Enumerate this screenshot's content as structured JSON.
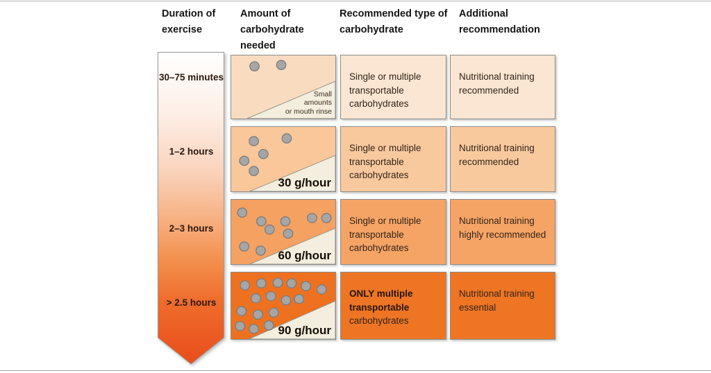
{
  "headers": [
    {
      "label": "Duration of exercise"
    },
    {
      "label": "Amount of carbohydrate needed"
    },
    {
      "label": "Recommended type of carbohydrate"
    },
    {
      "label": "Additional recommendation"
    }
  ],
  "duration_arrow": {
    "labels": [
      "30–75 minutes",
      "1–2 hours",
      "2–3 hours",
      "> 2.5 hours"
    ],
    "gradient": [
      "#ffffff",
      "#fdeee5",
      "#fad3bc",
      "#f7b488",
      "#f3924f",
      "#ef6c2c",
      "#e84d1a"
    ]
  },
  "rows": [
    {
      "color_amount": "#f9dcc0",
      "color_cells": "#fae6d2",
      "amount": {
        "dots": [
          [
            34,
            16
          ],
          [
            73,
            14
          ]
        ],
        "note_lines": [
          "Small",
          "amounts",
          "or mouth rinse"
        ]
      },
      "type": {
        "emphasis": "",
        "text": "Single or multiple transportable carbohydrates"
      },
      "additional": "Nutritional training recommended"
    },
    {
      "color_amount": "#f9c79a",
      "color_cells": "#f9c99e",
      "amount": {
        "dots": [
          [
            33,
            21
          ],
          [
            47,
            40
          ],
          [
            81,
            17
          ],
          [
            19,
            50
          ],
          [
            33,
            65
          ]
        ],
        "label": "30 g/hour"
      },
      "type": {
        "emphasis": "",
        "text": "Single or multiple transportable carbohydrates"
      },
      "additional": "Nutritional training recommended"
    },
    {
      "color_amount": "#f5a161",
      "color_cells": "#f5a465",
      "amount": {
        "dots": [
          [
            16,
            19
          ],
          [
            44,
            32
          ],
          [
            56,
            44
          ],
          [
            79,
            32
          ],
          [
            83,
            50
          ],
          [
            118,
            27
          ],
          [
            139,
            27
          ],
          [
            19,
            69
          ],
          [
            43,
            75
          ]
        ],
        "label": "60 g/hour"
      },
      "type": {
        "emphasis": "",
        "text": "Single or multiple transportable carbohydrates"
      },
      "additional": "Nutritional training highly recommended"
    },
    {
      "color_amount": "#ee7120",
      "color_cells": "#ee7524",
      "amount": {
        "dots": [
          [
            20,
            19
          ],
          [
            44,
            16
          ],
          [
            68,
            15
          ],
          [
            88,
            16
          ],
          [
            109,
            20
          ],
          [
            132,
            25
          ],
          [
            36,
            38
          ],
          [
            58,
            35
          ],
          [
            80,
            41
          ],
          [
            99,
            39
          ],
          [
            15,
            57
          ],
          [
            39,
            62
          ],
          [
            62,
            59
          ],
          [
            13,
            79
          ],
          [
            33,
            83
          ],
          [
            55,
            78
          ]
        ],
        "label": "90 g/hour"
      },
      "type": {
        "emphasis": "ONLY multiple transportable",
        "text": "carbohydrates"
      },
      "additional": "Nutritional training essential"
    }
  ],
  "styles": {
    "top_line": "#b5b5b5",
    "bottom_line": "#a5a5a5",
    "header_color": "#151515",
    "text_color": "#33241a",
    "box_border": "#8b8b8b",
    "wedge_fill": "#f3eedd",
    "wedge_stroke": "#96948a",
    "dot_fill": "#a6a6a6",
    "dot_stroke": "#7d7d7d",
    "arrow_border": "#9b9b9b"
  }
}
